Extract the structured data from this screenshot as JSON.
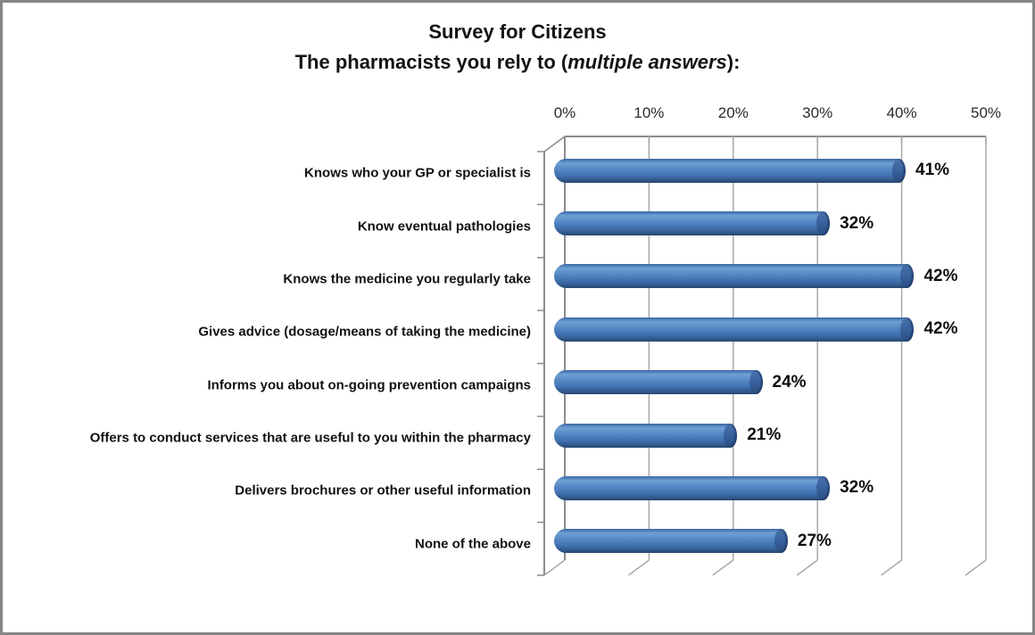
{
  "title": {
    "line1": "Survey for Citizens",
    "line2_prefix": "The pharmacists you rely to (",
    "line2_italic": "multiple answers",
    "line2_suffix": "):"
  },
  "chart_data": {
    "type": "bar",
    "orientation": "horizontal",
    "style": "3d-cylinder",
    "title": "Survey for Citizens — The pharmacists you rely to (multiple answers):",
    "categories": [
      "Knows who your GP or specialist is",
      "Know eventual pathologies",
      "Knows the medicine you regularly take",
      "Gives advice (dosage/means of taking the medicine)",
      "Informs you about on-going prevention campaigns",
      "Offers to conduct services that are useful to you within the pharmacy",
      "Delivers brochures or other useful information",
      "None of the above"
    ],
    "values": [
      41,
      32,
      42,
      42,
      24,
      21,
      32,
      27
    ],
    "data_labels": [
      "41%",
      "32%",
      "42%",
      "42%",
      "24%",
      "21%",
      "32%",
      "27%"
    ],
    "x_axis": {
      "position": "top",
      "tick_labels": [
        "0%",
        "10%",
        "20%",
        "30%",
        "40%",
        "50%"
      ],
      "tick_values": [
        0,
        10,
        20,
        30,
        40,
        50
      ],
      "xlim": [
        0,
        50
      ]
    },
    "legend": "none",
    "grid": "vertical-gridlines-on",
    "colors": {
      "bar_fill": "#4f81bd",
      "bar_dark": "#264872",
      "bar_highlight": "#6fa0d4",
      "gridline": "#a8a8a8",
      "axis_line": "#8c8c8c",
      "label_text": "#111111",
      "background": "#ffffff",
      "frame_border": "#858585"
    }
  }
}
